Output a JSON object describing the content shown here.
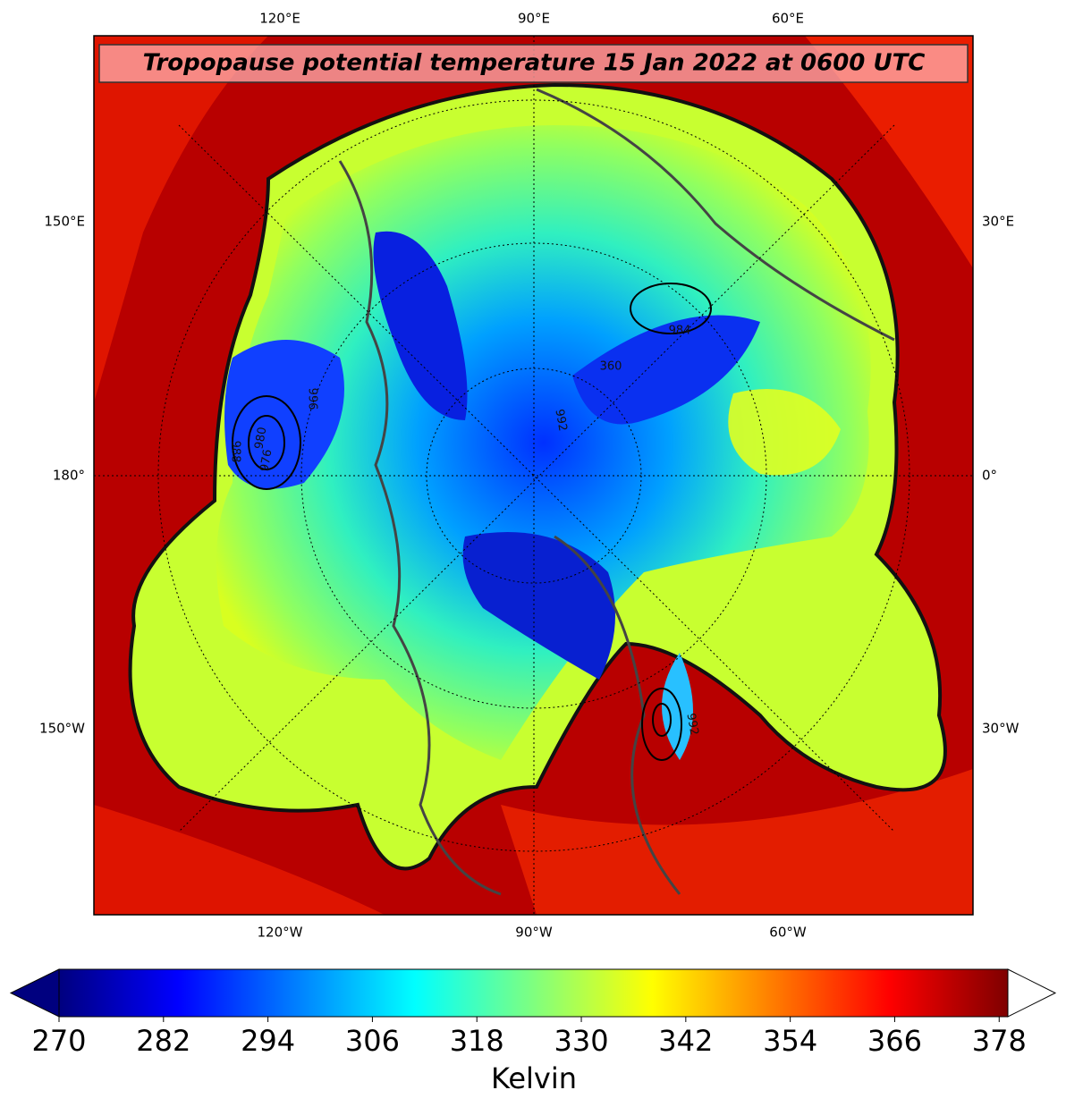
{
  "map": {
    "title": "Tropopause potential temperature 15 Jan 2022 at 0600 UTC",
    "lon_labels": {
      "top": [
        "120°E",
        "90°E",
        "60°E"
      ],
      "left": [
        "150°E",
        "180°",
        "150°W"
      ],
      "right": [
        "30°E",
        "0°",
        "30°W"
      ],
      "bottom": [
        "120°W",
        "90°W",
        "60°W"
      ]
    },
    "contour_labels": [
      "996",
      "980",
      "988",
      "976",
      "984",
      "992",
      "360",
      "992"
    ]
  },
  "colorbar": {
    "label": "Kelvin",
    "range": [
      270,
      379
    ],
    "ticks": [
      270,
      282,
      294,
      306,
      318,
      330,
      342,
      354,
      366,
      378
    ],
    "colors": [
      "#00007f",
      "#0000ff",
      "#007fff",
      "#00ffff",
      "#7fff7f",
      "#ffff00",
      "#ff7f00",
      "#ff0000",
      "#7f0000"
    ],
    "extend_low_color": "#00007f",
    "extend_high_color": "#ffffff"
  }
}
